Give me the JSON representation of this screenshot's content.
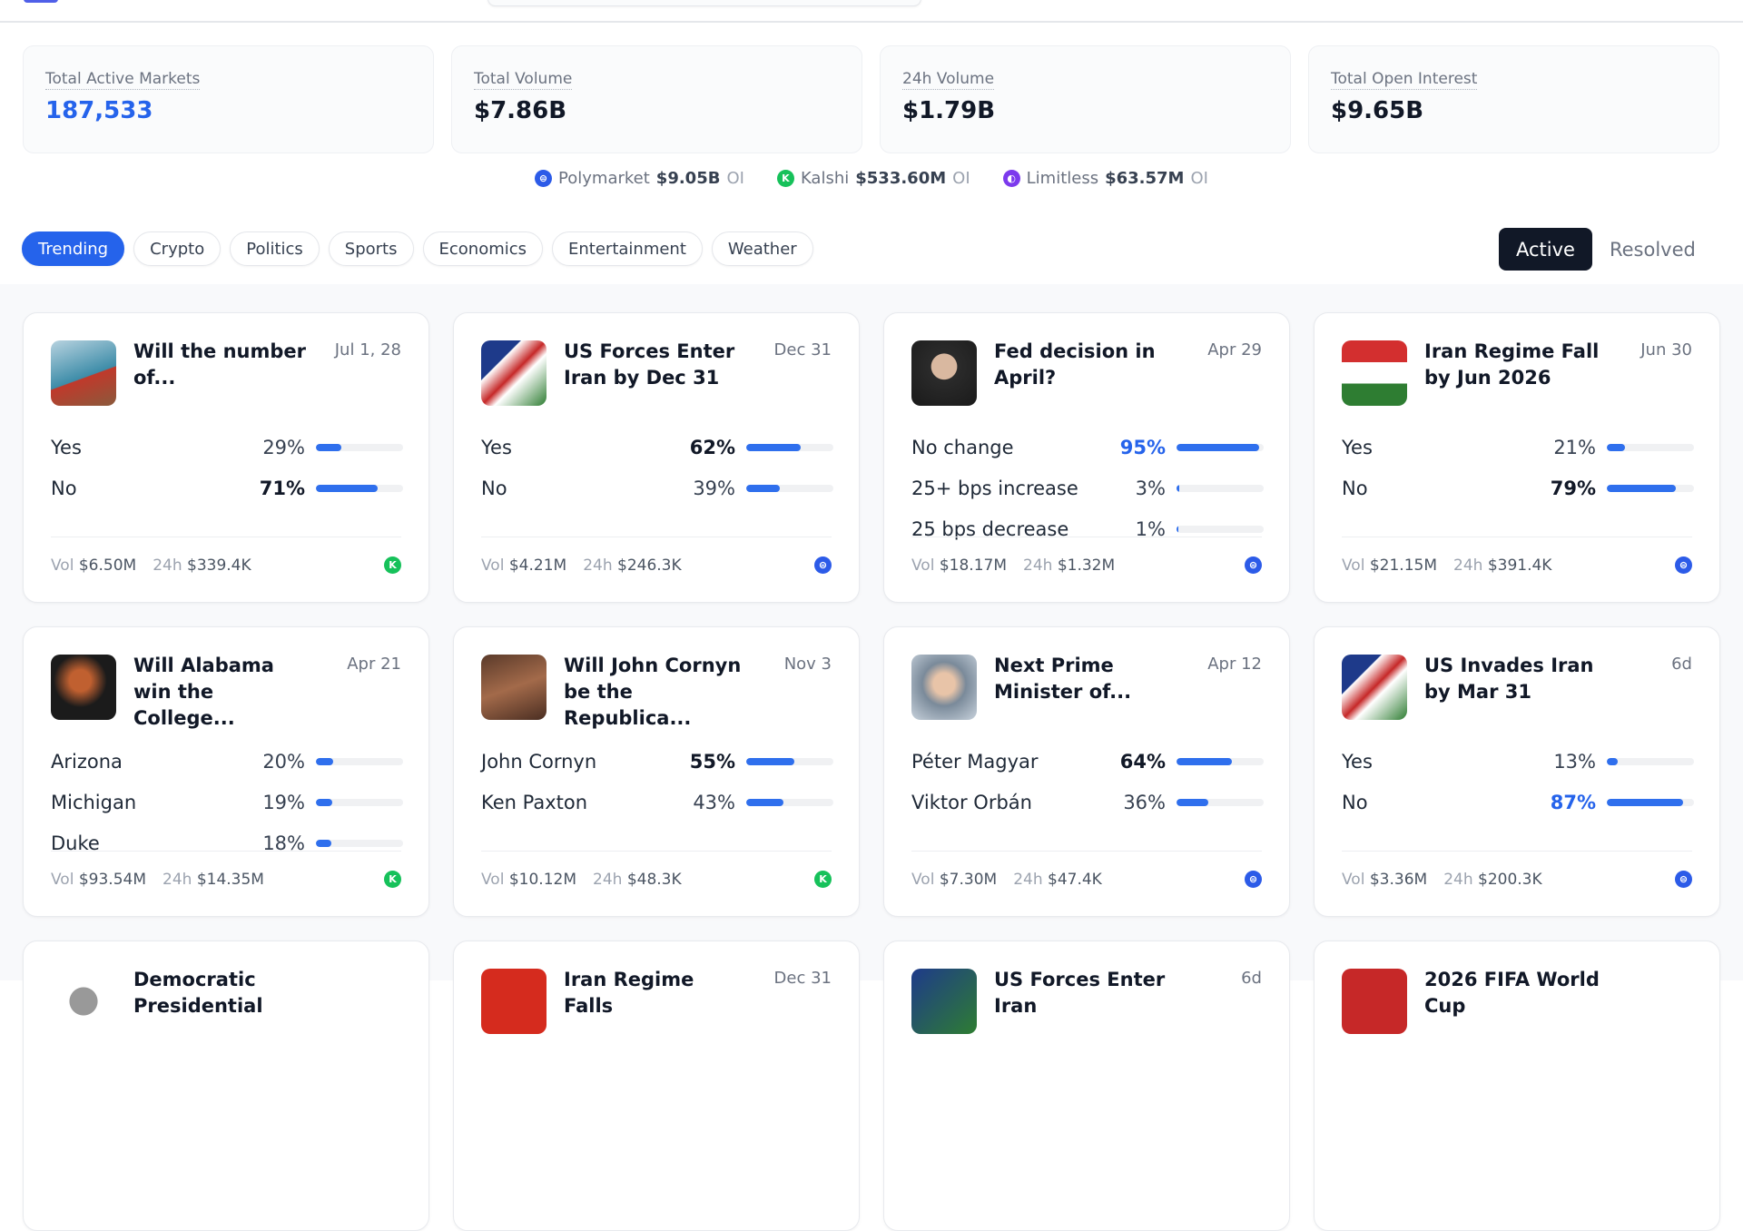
{
  "stats": [
    {
      "label": "Total Active Markets",
      "value": "187,533",
      "accent": true
    },
    {
      "label": "Total Volume",
      "value": "$7.86B"
    },
    {
      "label": "24h Volume",
      "value": "$1.79B"
    },
    {
      "label": "Total Open Interest",
      "value": "$9.65B"
    }
  ],
  "platforms": [
    {
      "name": "Polymarket",
      "value": "$9.05B",
      "suffix": "OI",
      "icon": "polymarket-icon",
      "glyph": "⊜"
    },
    {
      "name": "Kalshi",
      "value": "$533.60M",
      "suffix": "OI",
      "icon": "kalshi-icon",
      "glyph": "K"
    },
    {
      "name": "Limitless",
      "value": "$63.57M",
      "suffix": "OI",
      "icon": "limitless-icon",
      "glyph": "◐"
    }
  ],
  "tabs": [
    "Trending",
    "Crypto",
    "Politics",
    "Sports",
    "Economics",
    "Entertainment",
    "Weather"
  ],
  "status": {
    "active": "Active",
    "resolved": "Resolved"
  },
  "labels": {
    "vol": "Vol",
    "h24": "24h"
  },
  "colors": {
    "accent": "#2563eb",
    "kalshi": "#16c15a",
    "polymarket": "#2c5be8",
    "limitless": "#7c3aed"
  },
  "cards": [
    {
      "title": "Will the number of...",
      "date": "Jul 1, 28",
      "source": "kalshi",
      "outcomes": [
        {
          "label": "Yes",
          "pct": "29%",
          "value": 29,
          "style": "normal"
        },
        {
          "label": "No",
          "pct": "71%",
          "value": 71,
          "style": "bold"
        }
      ],
      "vol": "$6.50M",
      "h24": "$339.4K"
    },
    {
      "title": "US Forces Enter Iran by Dec 31",
      "date": "Dec 31",
      "source": "polymarket",
      "outcomes": [
        {
          "label": "Yes",
          "pct": "62%",
          "value": 62,
          "style": "bold"
        },
        {
          "label": "No",
          "pct": "39%",
          "value": 39,
          "style": "normal"
        }
      ],
      "vol": "$4.21M",
      "h24": "$246.3K"
    },
    {
      "title": "Fed decision in April?",
      "date": "Apr 29",
      "source": "polymarket",
      "outcomes": [
        {
          "label": "No change",
          "pct": "95%",
          "value": 95,
          "style": "blue"
        },
        {
          "label": "25+ bps increase",
          "pct": "3%",
          "value": 3,
          "style": "normal"
        },
        {
          "label": "25 bps decrease",
          "pct": "1%",
          "value": 1,
          "style": "normal"
        }
      ],
      "vol": "$18.17M",
      "h24": "$1.32M"
    },
    {
      "title": "Iran Regime Fall by Jun 2026",
      "date": "Jun 30",
      "source": "polymarket",
      "outcomes": [
        {
          "label": "Yes",
          "pct": "21%",
          "value": 21,
          "style": "normal"
        },
        {
          "label": "No",
          "pct": "79%",
          "value": 79,
          "style": "bold"
        }
      ],
      "vol": "$21.15M",
      "h24": "$391.4K"
    },
    {
      "title": "Will Alabama win the College...",
      "date": "Apr 21",
      "source": "kalshi",
      "outcomes": [
        {
          "label": "Arizona",
          "pct": "20%",
          "value": 20,
          "style": "normal"
        },
        {
          "label": "Michigan",
          "pct": "19%",
          "value": 19,
          "style": "normal"
        },
        {
          "label": "Duke",
          "pct": "18%",
          "value": 18,
          "style": "normal"
        }
      ],
      "vol": "$93.54M",
      "h24": "$14.35M"
    },
    {
      "title": "Will John Cornyn be the Republica...",
      "date": "Nov 3",
      "source": "kalshi",
      "outcomes": [
        {
          "label": "John Cornyn",
          "pct": "55%",
          "value": 55,
          "style": "bold"
        },
        {
          "label": "Ken Paxton",
          "pct": "43%",
          "value": 43,
          "style": "normal"
        }
      ],
      "vol": "$10.12M",
      "h24": "$48.3K"
    },
    {
      "title": "Next Prime Minister of...",
      "date": "Apr 12",
      "source": "polymarket",
      "outcomes": [
        {
          "label": "Péter Magyar",
          "pct": "64%",
          "value": 64,
          "style": "bold"
        },
        {
          "label": "Viktor Orbán",
          "pct": "36%",
          "value": 36,
          "style": "normal"
        }
      ],
      "vol": "$7.30M",
      "h24": "$47.4K"
    },
    {
      "title": "US Invades Iran by Mar 31",
      "date": "6d",
      "source": "polymarket",
      "outcomes": [
        {
          "label": "Yes",
          "pct": "13%",
          "value": 13,
          "style": "normal"
        },
        {
          "label": "No",
          "pct": "87%",
          "value": 87,
          "style": "blue"
        }
      ],
      "vol": "$3.36M",
      "h24": "$200.3K"
    },
    {
      "title": "Democratic Presidential",
      "date": "",
      "source": "",
      "outcomes": [],
      "vol": "",
      "h24": ""
    },
    {
      "title": "Iran Regime Falls",
      "date": "Dec 31",
      "source": "",
      "outcomes": [],
      "vol": "",
      "h24": ""
    },
    {
      "title": "US Forces Enter Iran",
      "date": "6d",
      "source": "",
      "outcomes": [],
      "vol": "",
      "h24": ""
    },
    {
      "title": "2026 FIFA World Cup",
      "date": "",
      "source": "",
      "outcomes": [],
      "vol": "",
      "h24": ""
    }
  ]
}
